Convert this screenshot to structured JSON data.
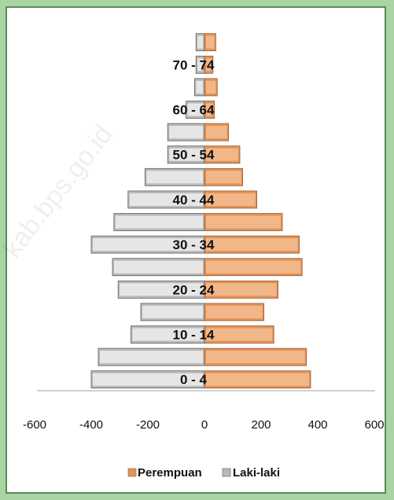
{
  "chart_data": {
    "type": "bar",
    "orientation": "horizontal",
    "categories": [
      "0 - 4",
      "5 - 9",
      "10 - 14",
      "15 - 19",
      "20 - 24",
      "25 - 29",
      "30 - 34",
      "35 - 39",
      "40 - 44",
      "45 - 49",
      "50 - 54",
      "55 - 59",
      "60 - 64",
      "65 - 69",
      "70 - 74",
      "75+"
    ],
    "category_labels_shown": [
      "0 - 4",
      "10 - 14",
      "20 - 24",
      "30 - 34",
      "40 - 44",
      "50 - 54",
      "60 - 64",
      "70 - 74"
    ],
    "series": [
      {
        "name": "Perempuan",
        "color": "#e0935a",
        "values": [
          375,
          360,
          245,
          210,
          260,
          345,
          335,
          275,
          185,
          135,
          125,
          85,
          35,
          45,
          30,
          40
        ]
      },
      {
        "name": "Laki-laki",
        "color": "#b9b9b9",
        "values": [
          -400,
          -375,
          -260,
          -225,
          -305,
          -325,
          -400,
          -320,
          -270,
          -210,
          -130,
          -130,
          -65,
          -35,
          -30,
          -30
        ]
      }
    ],
    "xlim": [
      -600,
      600
    ],
    "xticks": [
      -600,
      -400,
      -200,
      0,
      200,
      400,
      600
    ],
    "legend": "bottom",
    "grid": false
  },
  "watermark": "kab.bps.go.id"
}
